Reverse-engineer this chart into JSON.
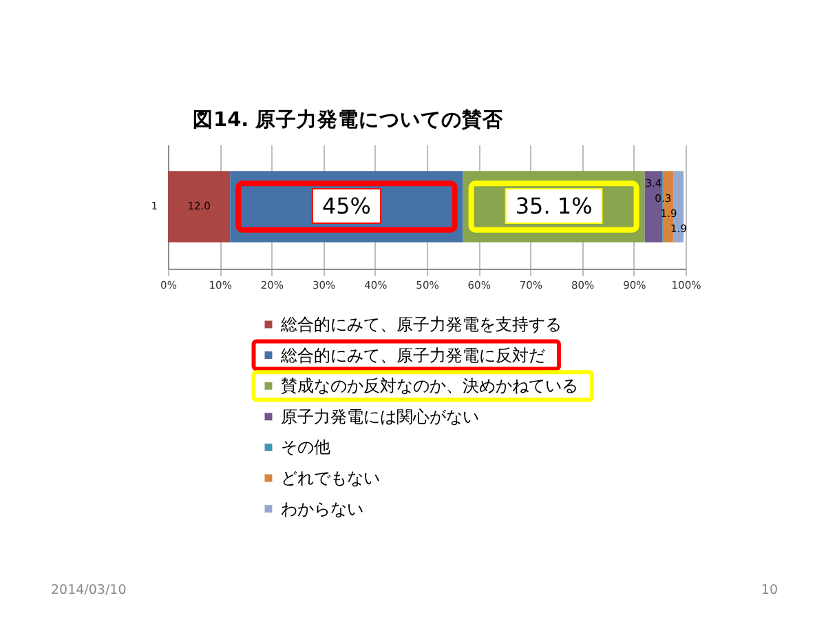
{
  "chart_data": {
    "type": "bar",
    "orientation": "horizontal",
    "stacked": true,
    "title": "図14. 原子力発電についての賛否",
    "categories": [
      "1"
    ],
    "series": [
      {
        "name": "総合的にみて、原子力発電を支持する",
        "color": "#aa4643",
        "values": [
          12.0
        ],
        "value_labels": [
          "12.0"
        ]
      },
      {
        "name": "総合的にみて、原子力発電に反対だ",
        "color": "#4572a7",
        "values": [
          45.0
        ],
        "value_labels": [
          null
        ]
      },
      {
        "name": "賛成なのか反対なのか、決めかねている",
        "color": "#89a54e",
        "values": [
          35.1
        ],
        "value_labels": [
          null
        ]
      },
      {
        "name": "原子力発電には関心がない",
        "color": "#71588f",
        "values": [
          3.4
        ],
        "value_labels": [
          "3.4"
        ]
      },
      {
        "name": "その他",
        "color": "#4198af",
        "values": [
          0.3
        ],
        "value_labels": [
          "0.3"
        ]
      },
      {
        "name": "どれでもない",
        "color": "#db843d",
        "values": [
          1.9
        ],
        "value_labels": [
          "1.9"
        ]
      },
      {
        "name": "わからない",
        "color": "#93a9cf",
        "values": [
          1.9
        ],
        "value_labels": [
          "1.9"
        ]
      }
    ],
    "xlim": [
      0,
      100
    ],
    "xticks": [
      {
        "value": 0,
        "label": "0%"
      },
      {
        "value": 10,
        "label": "10%"
      },
      {
        "value": 20,
        "label": "20%"
      },
      {
        "value": 30,
        "label": "30%"
      },
      {
        "value": 40,
        "label": "40%"
      },
      {
        "value": 50,
        "label": "50%"
      },
      {
        "value": 60,
        "label": "60%"
      },
      {
        "value": 70,
        "label": "70%"
      },
      {
        "value": 80,
        "label": "80%"
      },
      {
        "value": 90,
        "label": "90%"
      },
      {
        "value": 100,
        "label": "100%"
      }
    ],
    "grid": "x",
    "legend": "bottom",
    "annotations": [
      "45%",
      "35. 1%",
      "2014/03/10",
      "10"
    ]
  }
}
